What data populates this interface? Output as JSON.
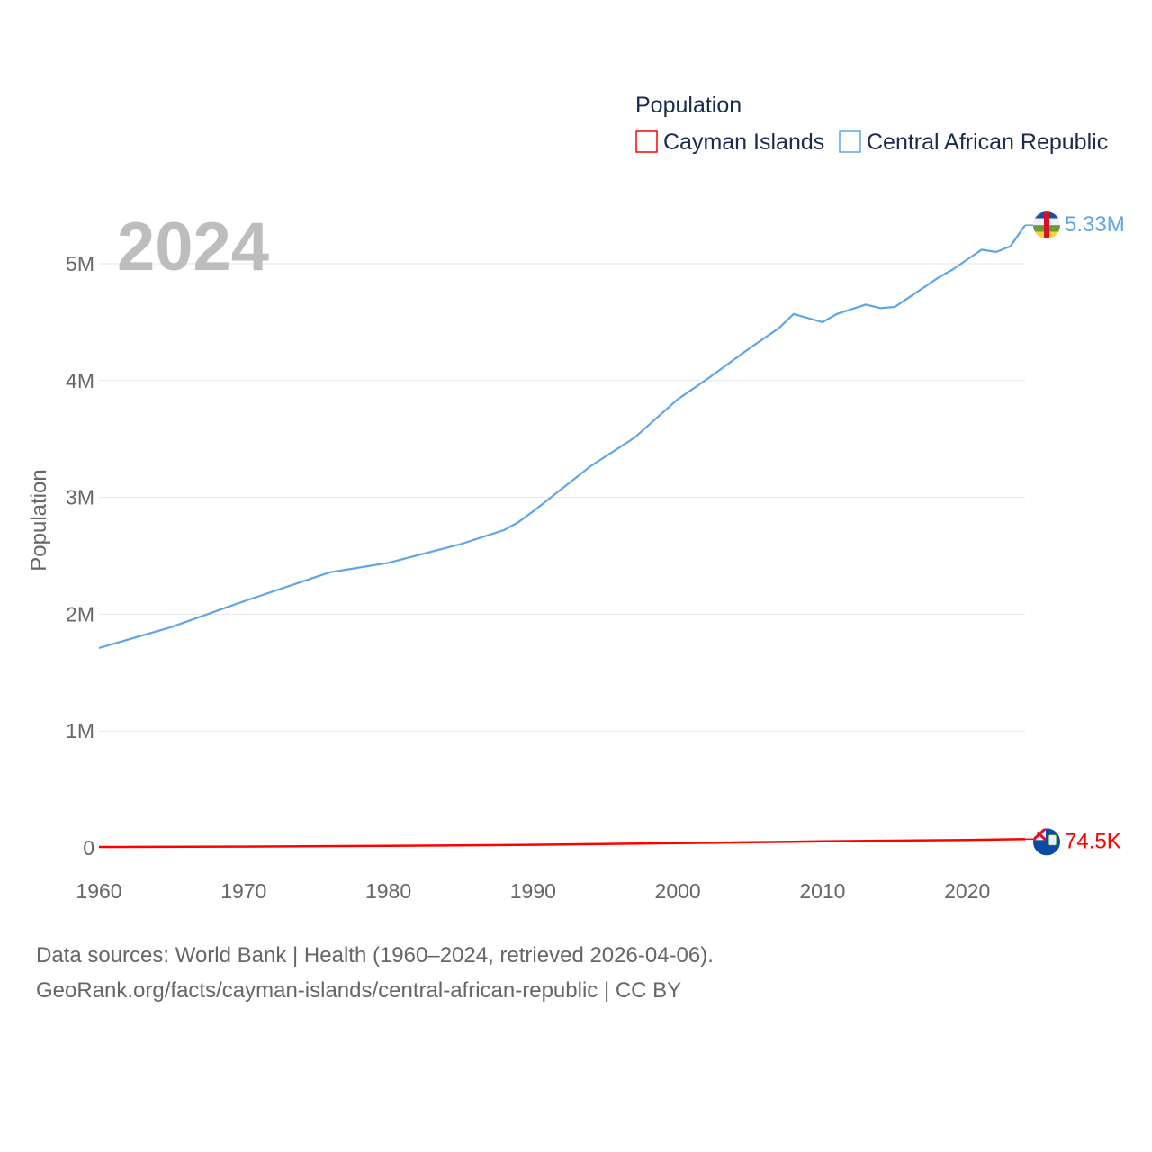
{
  "chart_data": {
    "type": "line",
    "title": "2024",
    "xlabel": "",
    "ylabel": "Population",
    "xlim": [
      1960,
      2024
    ],
    "ylim": [
      0,
      5000000
    ],
    "grid": true,
    "legend": {
      "title": "Population",
      "placement": "top-right"
    },
    "x_ticks": [
      "1960",
      "1970",
      "1980",
      "1990",
      "2000",
      "2010",
      "2020"
    ],
    "y_ticks": [
      {
        "v": 0,
        "label": "0"
      },
      {
        "v": 1000000,
        "label": "1M"
      },
      {
        "v": 2000000,
        "label": "2M"
      },
      {
        "v": 3000000,
        "label": "3M"
      },
      {
        "v": 4000000,
        "label": "4M"
      },
      {
        "v": 5000000,
        "label": "5M"
      }
    ],
    "series": [
      {
        "name": "Cayman Islands",
        "color": "#ff0000",
        "end_label": "74.5K",
        "flag": "cayman-islands-flag",
        "points": [
          [
            1960,
            8000
          ],
          [
            1970,
            10500
          ],
          [
            1980,
            17000
          ],
          [
            1990,
            26000
          ],
          [
            2000,
            41000
          ],
          [
            2010,
            55500
          ],
          [
            2020,
            68000
          ],
          [
            2024,
            74500
          ]
        ]
      },
      {
        "name": "Central African Republic",
        "color": "#5ea5e8",
        "end_label": "5.33M",
        "flag": "central-african-republic-flag",
        "points": [
          [
            1960,
            1710000
          ],
          [
            1965,
            1890000
          ],
          [
            1970,
            2110000
          ],
          [
            1975,
            2320000
          ],
          [
            1976,
            2360000
          ],
          [
            1980,
            2440000
          ],
          [
            1985,
            2600000
          ],
          [
            1988,
            2720000
          ],
          [
            1989,
            2790000
          ],
          [
            1990,
            2880000
          ],
          [
            1994,
            3270000
          ],
          [
            1997,
            3510000
          ],
          [
            2000,
            3840000
          ],
          [
            2002,
            4010000
          ],
          [
            2005,
            4280000
          ],
          [
            2007,
            4450000
          ],
          [
            2008,
            4570000
          ],
          [
            2010,
            4500000
          ],
          [
            2011,
            4570000
          ],
          [
            2012,
            4610000
          ],
          [
            2013,
            4650000
          ],
          [
            2014,
            4620000
          ],
          [
            2015,
            4630000
          ],
          [
            2018,
            4880000
          ],
          [
            2019,
            4950000
          ],
          [
            2021,
            5120000
          ],
          [
            2022,
            5100000
          ],
          [
            2023,
            5150000
          ],
          [
            2024,
            5330000
          ]
        ]
      }
    ]
  },
  "footer": {
    "line1": "Data sources: World Bank | Health (1960–2024, retrieved 2026-04-06).",
    "line2": "GeoRank.org/facts/cayman-islands/central-african-republic | CC BY"
  }
}
